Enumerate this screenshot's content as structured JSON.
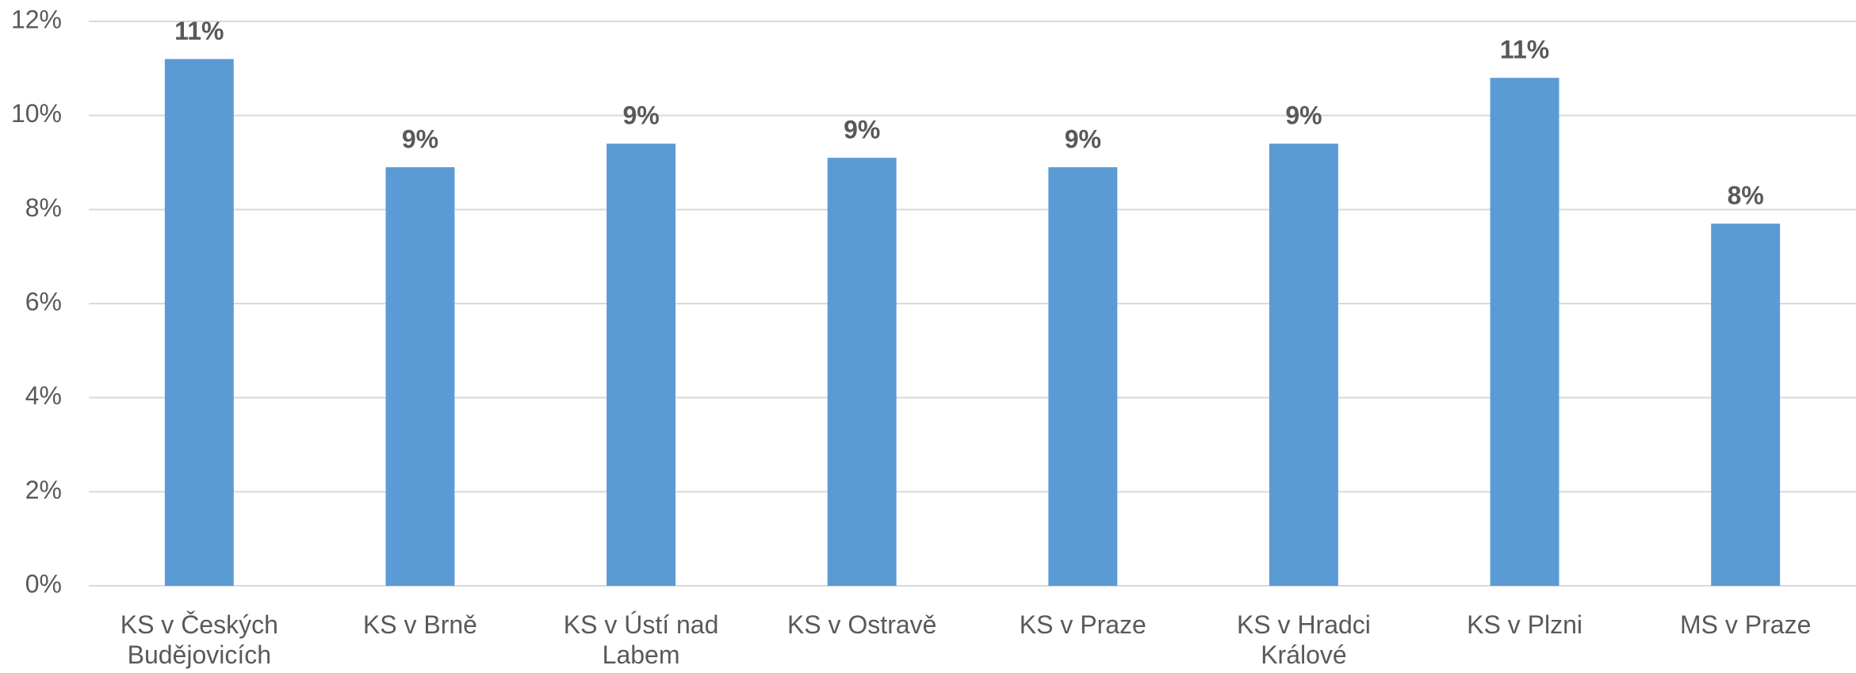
{
  "chart_data": {
    "type": "bar",
    "categories": [
      "KS v Českých Budějovicích",
      "KS v Brně",
      "KS v Ústí nad Labem",
      "KS v Ostravě",
      "KS v Praze",
      "KS v Hradci Králové",
      "KS v Plzni",
      "MS v Praze"
    ],
    "values": [
      11.2,
      8.9,
      9.4,
      9.1,
      8.9,
      9.4,
      10.8,
      7.7
    ],
    "value_labels": [
      "11%",
      "9%",
      "9%",
      "9%",
      "9%",
      "9%",
      "11%",
      "8%"
    ],
    "color": "#5b9bd5",
    "ylim": [
      0,
      12
    ],
    "yticks": [
      {
        "value": 0,
        "label": "0%"
      },
      {
        "value": 2,
        "label": "2%"
      },
      {
        "value": 4,
        "label": "4%"
      },
      {
        "value": 6,
        "label": "6%"
      },
      {
        "value": 8,
        "label": "8%"
      },
      {
        "value": 10,
        "label": "10%"
      },
      {
        "value": 12,
        "label": "12%"
      }
    ],
    "grid": true
  }
}
